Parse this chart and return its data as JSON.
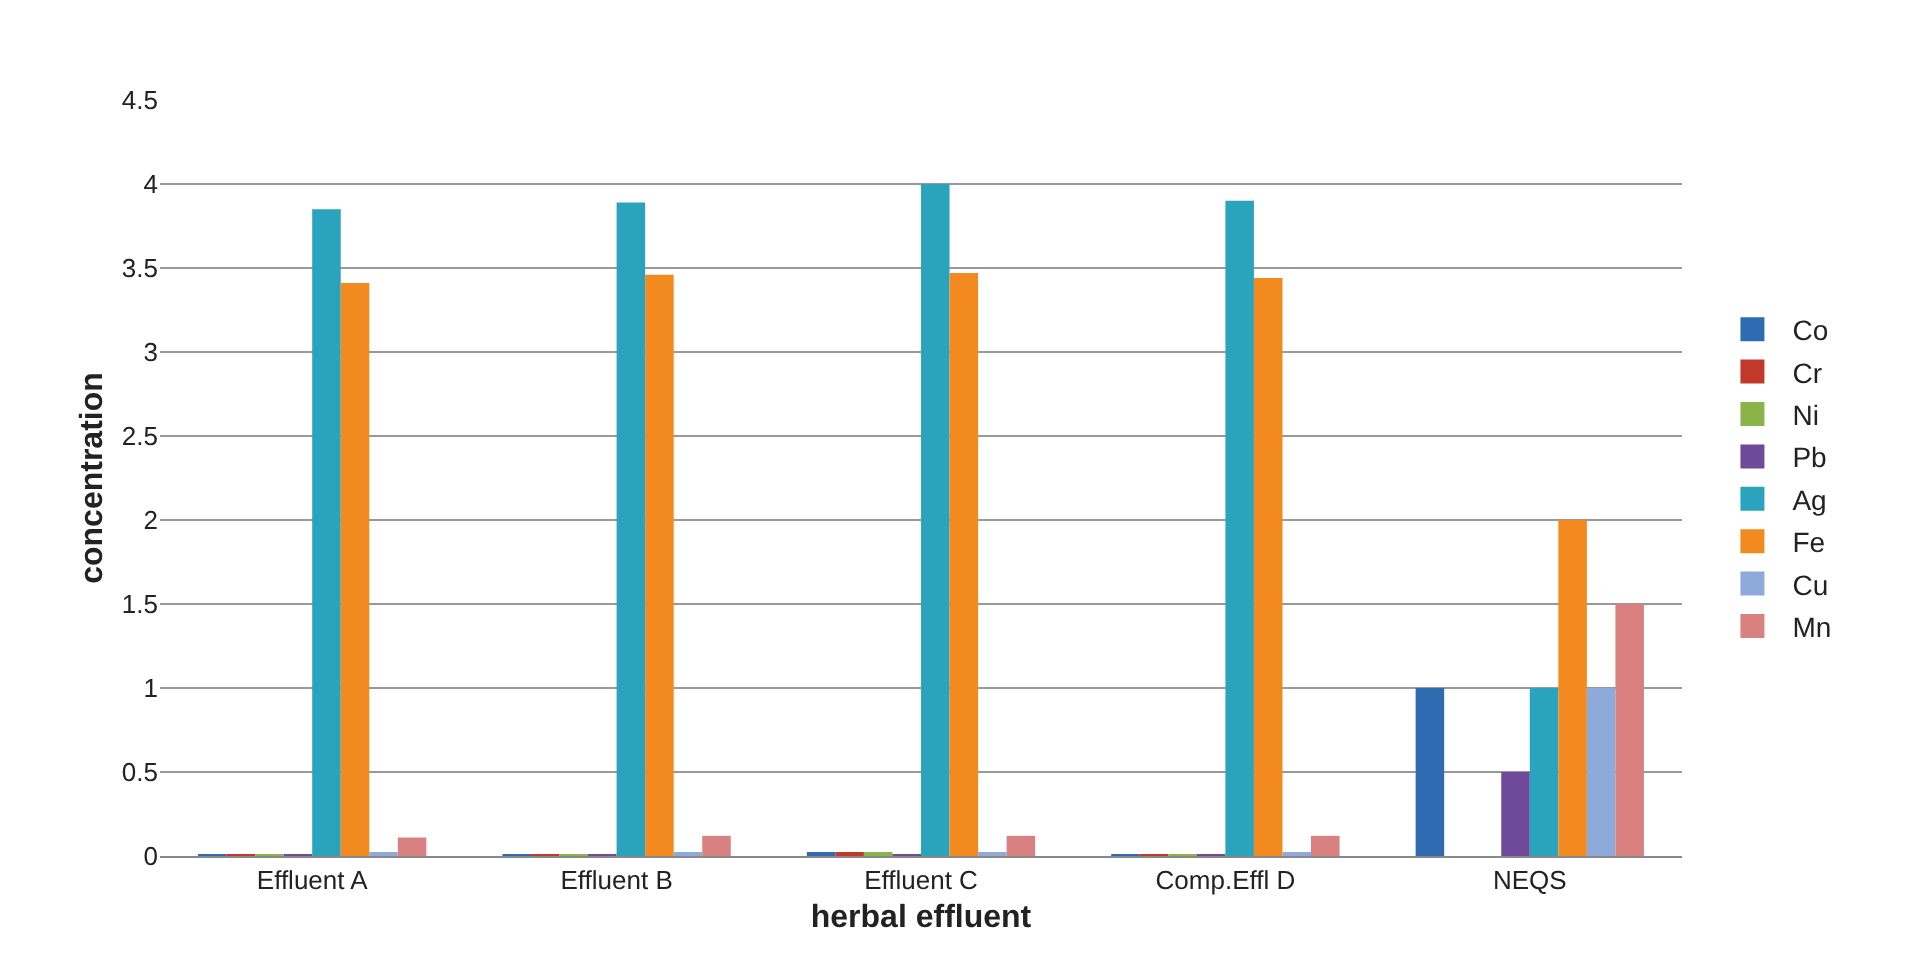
{
  "chart_data": {
    "type": "bar",
    "xlabel": "herbal effluent",
    "ylabel": "concentration",
    "categories": [
      "Effluent A",
      "Effluent B",
      "Effluent C",
      "Comp.Effl D",
      "NEQS"
    ],
    "series": [
      {
        "name": "Co",
        "color": "#2e6bb0",
        "values": [
          0.01,
          0.01,
          0.02,
          0.01,
          1
        ]
      },
      {
        "name": "Cr",
        "color": "#c0392b",
        "values": [
          0.01,
          0.01,
          0.02,
          0.01,
          null
        ]
      },
      {
        "name": "Ni",
        "color": "#8ab44a",
        "values": [
          0.01,
          0.01,
          0.02,
          0.01,
          null
        ]
      },
      {
        "name": "Pb",
        "color": "#6f4a9a",
        "values": [
          0.01,
          0.01,
          0.01,
          0.01,
          0.5
        ]
      },
      {
        "name": "Ag",
        "color": "#2aa3bd",
        "values": [
          3.85,
          3.89,
          4.0,
          3.9,
          1
        ]
      },
      {
        "name": "Fe",
        "color": "#f28a1f",
        "values": [
          3.41,
          3.46,
          3.47,
          3.44,
          2
        ]
      },
      {
        "name": "Cu",
        "color": "#8eaadb",
        "values": [
          0.02,
          0.02,
          0.02,
          0.02,
          1
        ]
      },
      {
        "name": "Mn",
        "color": "#d98080",
        "values": [
          0.11,
          0.12,
          0.12,
          0.12,
          1.5
        ]
      }
    ],
    "ylim": [
      0,
      4.5
    ],
    "yticks": [
      0,
      0.5,
      1,
      1.5,
      2,
      2.5,
      3,
      3.5,
      4,
      4.5
    ],
    "grid": "y",
    "legend": "right"
  }
}
